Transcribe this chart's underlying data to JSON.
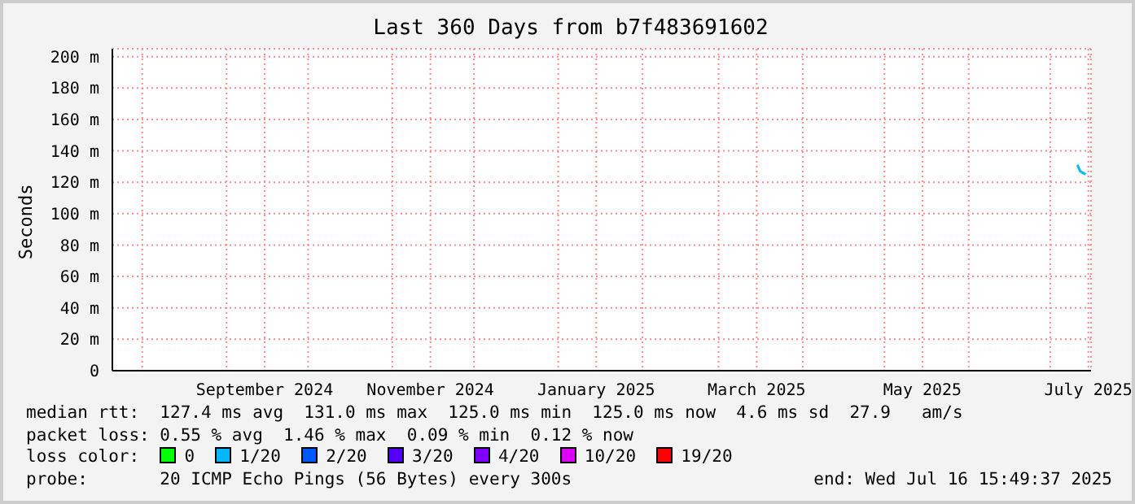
{
  "chart_data": {
    "type": "line",
    "title": "Last 360 Days from b7f483691602",
    "ylabel": "Seconds",
    "x": [
      "2025-07-11",
      "2025-07-12",
      "2025-07-13",
      "2025-07-14"
    ],
    "series": [
      {
        "color": "#00b8ff",
        "values": [
          131,
          127,
          126,
          125
        ]
      }
    ],
    "xlim": [
      "2024-07-21",
      "2025-07-16"
    ],
    "xticks": [
      {
        "value": "2024-08-01",
        "label": null
      },
      {
        "value": "2024-09-01",
        "label": null
      },
      {
        "value": "2024-09-15",
        "label": "September 2024"
      },
      {
        "value": "2024-10-01",
        "label": null
      },
      {
        "value": "2024-11-01",
        "label": null
      },
      {
        "value": "2024-11-15",
        "label": "November 2024"
      },
      {
        "value": "2024-12-01",
        "label": null
      },
      {
        "value": "2025-01-01",
        "label": null
      },
      {
        "value": "2025-01-15",
        "label": "January 2025"
      },
      {
        "value": "2025-02-01",
        "label": null
      },
      {
        "value": "2025-03-01",
        "label": null
      },
      {
        "value": "2025-03-15",
        "label": "March 2025"
      },
      {
        "value": "2025-04-01",
        "label": null
      },
      {
        "value": "2025-05-01",
        "label": null
      },
      {
        "value": "2025-05-15",
        "label": "May 2025"
      },
      {
        "value": "2025-06-01",
        "label": null
      },
      {
        "value": "2025-07-01",
        "label": null
      },
      {
        "value": "2025-07-15",
        "label": "July 2025"
      }
    ],
    "ylim": [
      0,
      205
    ],
    "yticks": [
      0,
      {
        "value": 20,
        "label": "20 m"
      },
      {
        "value": 40,
        "label": "40 m"
      },
      {
        "value": 60,
        "label": "60 m"
      },
      {
        "value": 80,
        "label": "80 m"
      },
      {
        "value": 100,
        "label": "100 m"
      },
      {
        "value": 120,
        "label": "120 m"
      },
      {
        "value": 140,
        "label": "140 m"
      },
      {
        "value": 160,
        "label": "160 m"
      },
      {
        "value": 180,
        "label": "180 m"
      },
      {
        "value": 200,
        "label": "200 m"
      }
    ],
    "grid": true,
    "marker": "none",
    "line_style": "solid",
    "annotations": [
      "median rtt:  127.4 ms avg  131.0 ms max  125.0 ms min  125.0 ms now  4.6 ms sd  27.9   am/s",
      "packet loss: 0.55 % avg  1.46 % max  0.09 % min  0.12 % now",
      "loss color:  0  1/20  2/20  3/20  4/20  10/20  19/20",
      "probe:       20 ICMP Echo Pings (56 Bytes) every 300s",
      "end: Wed Jul 16 15:49:37 2025"
    ]
  }
}
